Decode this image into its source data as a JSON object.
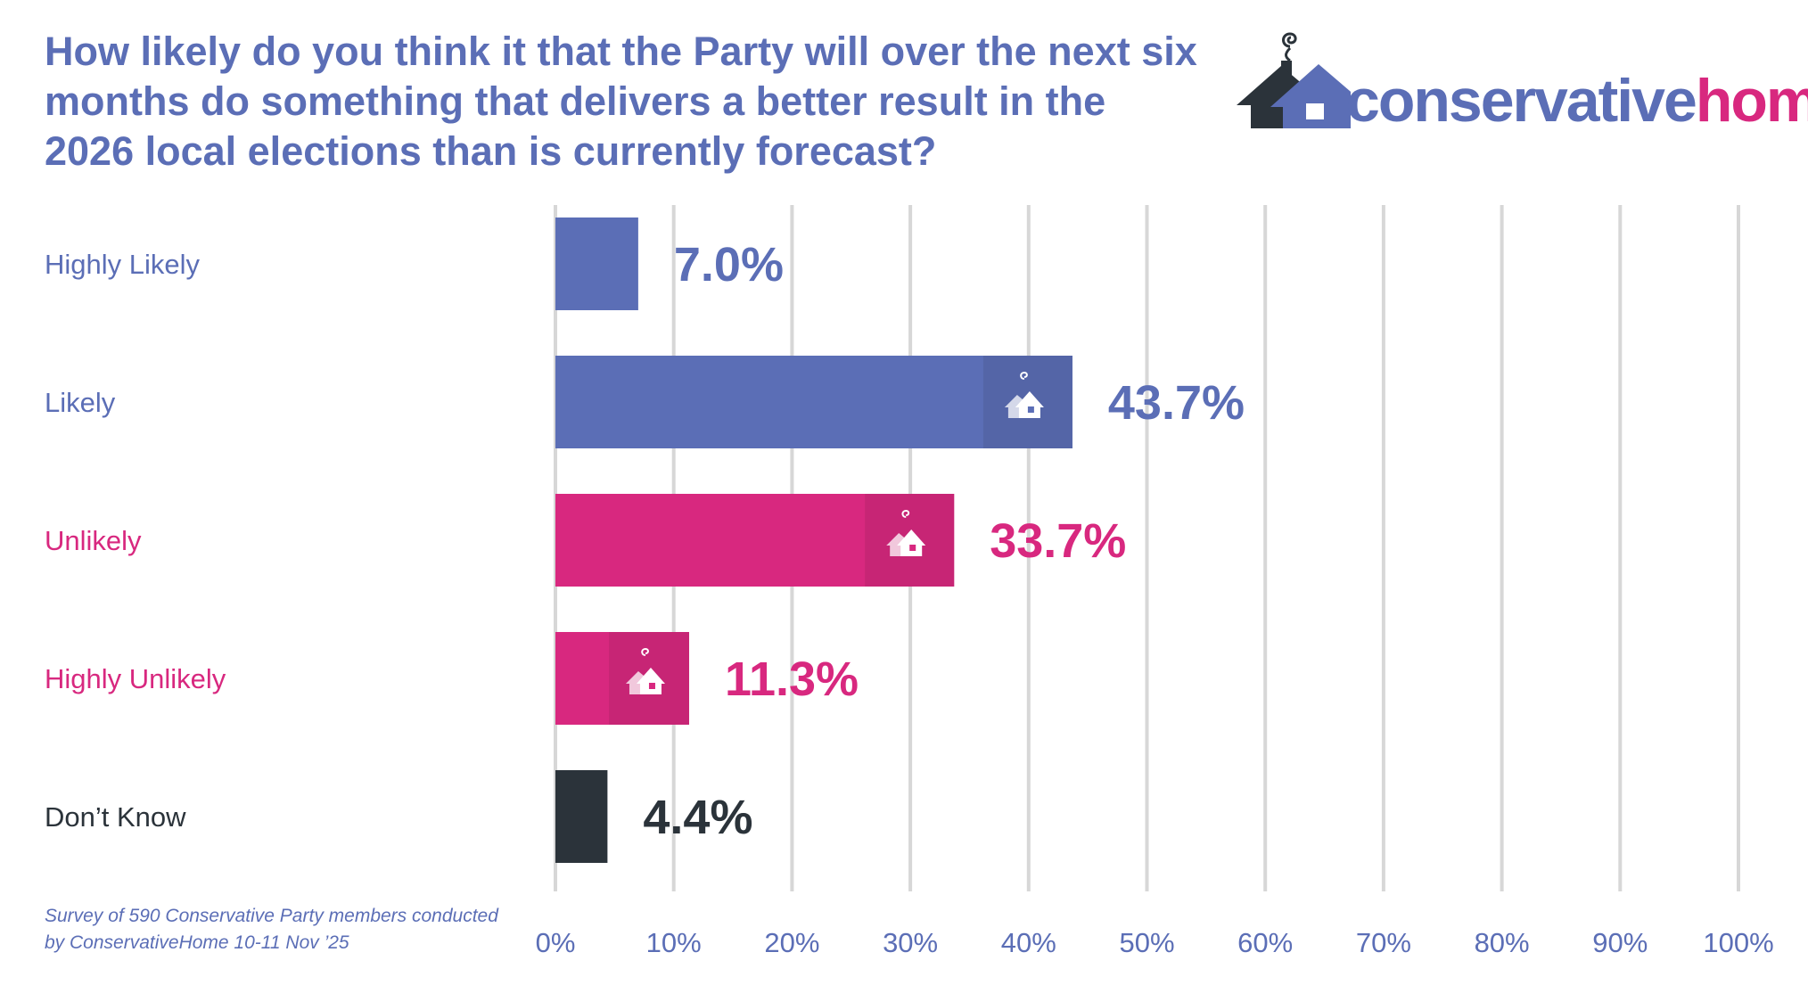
{
  "title": "How likely do you think it that the Party will over the next six months do something that delivers a better result in the 2026 local elections than is currently forecast?",
  "logo": {
    "name_part1": "conservative",
    "name_part2": "home",
    "icon": "house-with-smoke-icon"
  },
  "source": "Survey of 590 Conservative Party members conducted by ConservativeHome 10-11 Nov ’25",
  "colors": {
    "blue": "#5b6eb6",
    "magenta": "#d8287f",
    "dark": "#2b333a",
    "grid": "#d7d7d7"
  },
  "chart_data": {
    "type": "bar",
    "orientation": "horizontal",
    "title": "How likely do you think it that the Party will over the next six months do something that delivers a better result in the 2026 local elections than is currently forecast?",
    "categories": [
      "Highly Likely",
      "Likely",
      "Unlikely",
      "Highly Unlikely",
      "Don’t Know"
    ],
    "values": [
      7.0,
      43.7,
      33.7,
      11.3,
      4.4
    ],
    "value_labels": [
      "7.0%",
      "43.7%",
      "33.7%",
      "11.3%",
      "4.4%"
    ],
    "bar_colors": [
      "#5b6eb6",
      "#5b6eb6",
      "#d8287f",
      "#d8287f",
      "#2b333a"
    ],
    "label_colors": [
      "#5b6eb6",
      "#5b6eb6",
      "#d8287f",
      "#d8287f",
      "#2b333a"
    ],
    "house_icon_on_bar": [
      false,
      true,
      true,
      true,
      false
    ],
    "xlim": [
      0,
      100
    ],
    "xticks": [
      0,
      10,
      20,
      30,
      40,
      50,
      60,
      70,
      80,
      90,
      100
    ],
    "xtick_labels": [
      "0%",
      "10%",
      "20%",
      "30%",
      "40%",
      "50%",
      "60%",
      "70%",
      "80%",
      "90%",
      "100%"
    ],
    "xlabel": "",
    "ylabel": "",
    "grid": true,
    "legend": "none"
  }
}
